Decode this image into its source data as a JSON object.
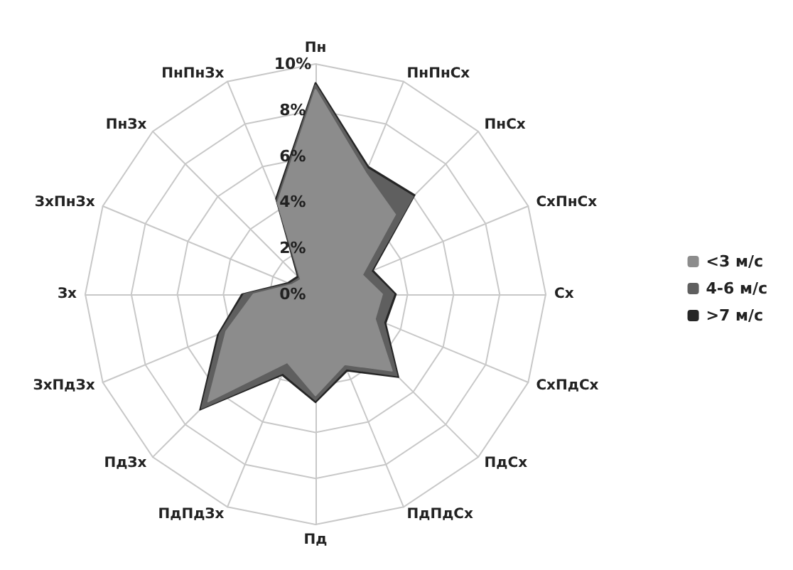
{
  "chart_data": {
    "type": "radar",
    "categories": [
      "Пн",
      "ПнПнСх",
      "ПнСх",
      "СхПнСх",
      "Сх",
      "СхПдСх",
      "ПдСх",
      "ПдПдСх",
      "Пд",
      "ПдПдЗх",
      "ПдЗх",
      "ЗхПдЗх",
      "Зх",
      "ЗхПнЗх",
      "ПнЗх",
      "ПнПнЗх"
    ],
    "series": [
      {
        "name": ">7 м/с",
        "color": "#262626",
        "values": [
          9.2,
          6.0,
          6.1,
          2.7,
          3.5,
          3.3,
          5.1,
          3.6,
          4.7,
          3.8,
          7.1,
          4.6,
          3.2,
          1.3,
          1.1,
          4.5
        ]
      },
      {
        "name": "4-6 м/с",
        "color": "#5f5f5f",
        "values": [
          9.1,
          5.9,
          6.0,
          2.6,
          3.4,
          3.2,
          5.0,
          3.5,
          4.6,
          3.7,
          7.0,
          4.5,
          3.1,
          1.2,
          1.0,
          4.4
        ]
      },
      {
        "name": "<3 м/с",
        "color": "#8c8c8c",
        "values": [
          8.9,
          5.7,
          4.9,
          2.2,
          2.9,
          2.8,
          4.7,
          3.3,
          4.4,
          3.2,
          6.6,
          4.2,
          2.7,
          1.1,
          0.9,
          4.3
        ]
      }
    ],
    "ylim": [
      0,
      10
    ],
    "yticks": [
      {
        "value": 0,
        "label": "0%"
      },
      {
        "value": 2,
        "label": "2%"
      },
      {
        "value": 4,
        "label": "4%"
      },
      {
        "value": 6,
        "label": "6%"
      },
      {
        "value": 8,
        "label": "8%"
      },
      {
        "value": 10,
        "label": "10%"
      }
    ],
    "grid": true,
    "legend": "right"
  }
}
